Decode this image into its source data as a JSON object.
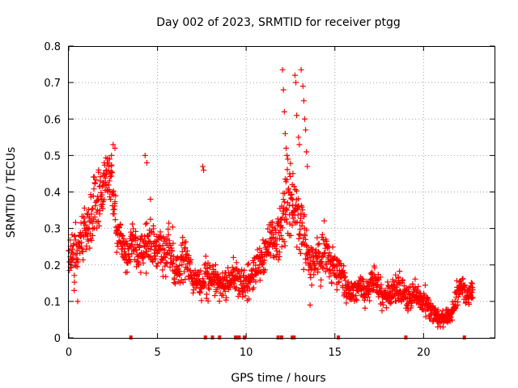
{
  "chart_data": {
    "type": "scatter",
    "title": "Day 002 of 2023, SRMTID for receiver ptgg",
    "xlabel": "GPS time / hours",
    "ylabel": "SRMTID / TECUs",
    "xlim": [
      0,
      24
    ],
    "ylim": [
      0,
      0.8
    ],
    "x_ticks": [
      0,
      5,
      10,
      15,
      20
    ],
    "x_tick_labels": [
      "0",
      "5",
      "10",
      "15",
      "20"
    ],
    "y_ticks": [
      0,
      0.1,
      0.2,
      0.3,
      0.4,
      0.5,
      0.6,
      0.7,
      0.8
    ],
    "y_tick_labels": [
      "0",
      "0.1",
      "0.2",
      "0.3",
      "0.4",
      "0.5",
      "0.6",
      "0.7",
      "0.8"
    ],
    "grid": true,
    "marker": "+",
    "color": "#ff0000",
    "series": [
      {
        "name": "SRMTID",
        "trend": [
          [
            0.0,
            0.24,
            0.05
          ],
          [
            0.3,
            0.22,
            0.05
          ],
          [
            0.6,
            0.27,
            0.06
          ],
          [
            0.9,
            0.29,
            0.07
          ],
          [
            1.2,
            0.31,
            0.08
          ],
          [
            1.5,
            0.39,
            0.07
          ],
          [
            1.8,
            0.38,
            0.08
          ],
          [
            2.1,
            0.42,
            0.08
          ],
          [
            2.4,
            0.45,
            0.07
          ],
          [
            2.7,
            0.29,
            0.05
          ],
          [
            3.0,
            0.26,
            0.04
          ],
          [
            3.3,
            0.21,
            0.04
          ],
          [
            3.6,
            0.26,
            0.05
          ],
          [
            3.9,
            0.23,
            0.05
          ],
          [
            4.2,
            0.25,
            0.07
          ],
          [
            4.5,
            0.27,
            0.06
          ],
          [
            4.8,
            0.24,
            0.05
          ],
          [
            5.1,
            0.25,
            0.05
          ],
          [
            5.4,
            0.22,
            0.06
          ],
          [
            5.7,
            0.25,
            0.07
          ],
          [
            6.0,
            0.18,
            0.05
          ],
          [
            6.3,
            0.21,
            0.05
          ],
          [
            6.6,
            0.22,
            0.06
          ],
          [
            6.9,
            0.17,
            0.04
          ],
          [
            7.2,
            0.15,
            0.04
          ],
          [
            7.5,
            0.14,
            0.04
          ],
          [
            7.8,
            0.17,
            0.06
          ],
          [
            8.1,
            0.17,
            0.04
          ],
          [
            8.4,
            0.16,
            0.04
          ],
          [
            8.7,
            0.14,
            0.04
          ],
          [
            9.0,
            0.15,
            0.05
          ],
          [
            9.3,
            0.18,
            0.04
          ],
          [
            9.6,
            0.16,
            0.04
          ],
          [
            9.9,
            0.14,
            0.04
          ],
          [
            10.2,
            0.16,
            0.04
          ],
          [
            10.5,
            0.19,
            0.05
          ],
          [
            10.8,
            0.2,
            0.05
          ],
          [
            11.1,
            0.23,
            0.05
          ],
          [
            11.4,
            0.28,
            0.05
          ],
          [
            11.7,
            0.26,
            0.06
          ],
          [
            12.0,
            0.31,
            0.07
          ],
          [
            12.3,
            0.38,
            0.1
          ],
          [
            12.6,
            0.35,
            0.1
          ],
          [
            12.9,
            0.32,
            0.12
          ],
          [
            13.2,
            0.3,
            0.09
          ],
          [
            13.5,
            0.22,
            0.06
          ],
          [
            13.8,
            0.2,
            0.05
          ],
          [
            14.1,
            0.22,
            0.05
          ],
          [
            14.4,
            0.24,
            0.06
          ],
          [
            14.7,
            0.21,
            0.05
          ],
          [
            15.0,
            0.19,
            0.04
          ],
          [
            15.3,
            0.18,
            0.04
          ],
          [
            15.6,
            0.14,
            0.04
          ],
          [
            15.9,
            0.12,
            0.03
          ],
          [
            16.2,
            0.13,
            0.03
          ],
          [
            16.5,
            0.14,
            0.03
          ],
          [
            16.8,
            0.12,
            0.03
          ],
          [
            17.1,
            0.16,
            0.04
          ],
          [
            17.4,
            0.15,
            0.04
          ],
          [
            17.7,
            0.11,
            0.03
          ],
          [
            18.0,
            0.12,
            0.03
          ],
          [
            18.3,
            0.13,
            0.03
          ],
          [
            18.6,
            0.14,
            0.04
          ],
          [
            18.9,
            0.12,
            0.03
          ],
          [
            19.2,
            0.11,
            0.03
          ],
          [
            19.5,
            0.12,
            0.03
          ],
          [
            19.8,
            0.11,
            0.03
          ],
          [
            20.1,
            0.1,
            0.03
          ],
          [
            20.4,
            0.08,
            0.02
          ],
          [
            20.7,
            0.06,
            0.02
          ],
          [
            21.0,
            0.05,
            0.02
          ],
          [
            21.3,
            0.06,
            0.02
          ],
          [
            21.6,
            0.07,
            0.02
          ],
          [
            21.9,
            0.12,
            0.03
          ],
          [
            22.2,
            0.14,
            0.03
          ],
          [
            22.5,
            0.12,
            0.03
          ],
          [
            22.8,
            0.12,
            0.02
          ]
        ],
        "samples_per_segment": 22,
        "outliers": [
          [
            12.05,
            0.735
          ],
          [
            12.1,
            0.68
          ],
          [
            12.15,
            0.62
          ],
          [
            12.2,
            0.56
          ],
          [
            12.25,
            0.52
          ],
          [
            12.3,
            0.5
          ],
          [
            12.35,
            0.49
          ],
          [
            12.45,
            0.45
          ],
          [
            12.6,
            0.42
          ],
          [
            12.75,
            0.72
          ],
          [
            12.8,
            0.7
          ],
          [
            12.85,
            0.61
          ],
          [
            12.95,
            0.55
          ],
          [
            13.0,
            0.53
          ],
          [
            13.1,
            0.735
          ],
          [
            13.2,
            0.69
          ],
          [
            13.25,
            0.65
          ],
          [
            13.3,
            0.6
          ],
          [
            13.35,
            0.57
          ],
          [
            13.4,
            0.51
          ],
          [
            13.45,
            0.47
          ],
          [
            2.3,
            0.49
          ],
          [
            2.4,
            0.5
          ],
          [
            2.5,
            0.53
          ],
          [
            2.6,
            0.52
          ],
          [
            2.1,
            0.46
          ],
          [
            2.0,
            0.48
          ],
          [
            4.3,
            0.5
          ],
          [
            4.4,
            0.48
          ],
          [
            4.6,
            0.38
          ],
          [
            7.55,
            0.47
          ],
          [
            7.6,
            0.46
          ],
          [
            0.5,
            0.1
          ],
          [
            0.3,
            0.13
          ],
          [
            13.6,
            0.09
          ],
          [
            20.8,
            0.03
          ],
          [
            21.1,
            0.03
          ]
        ],
        "zero_x": [
          3.5,
          7.7,
          8.1,
          8.5,
          9.4,
          9.5,
          9.6,
          9.9,
          11.8,
          12.0,
          12.6,
          12.7,
          15.2,
          19.0,
          22.3
        ]
      }
    ]
  }
}
